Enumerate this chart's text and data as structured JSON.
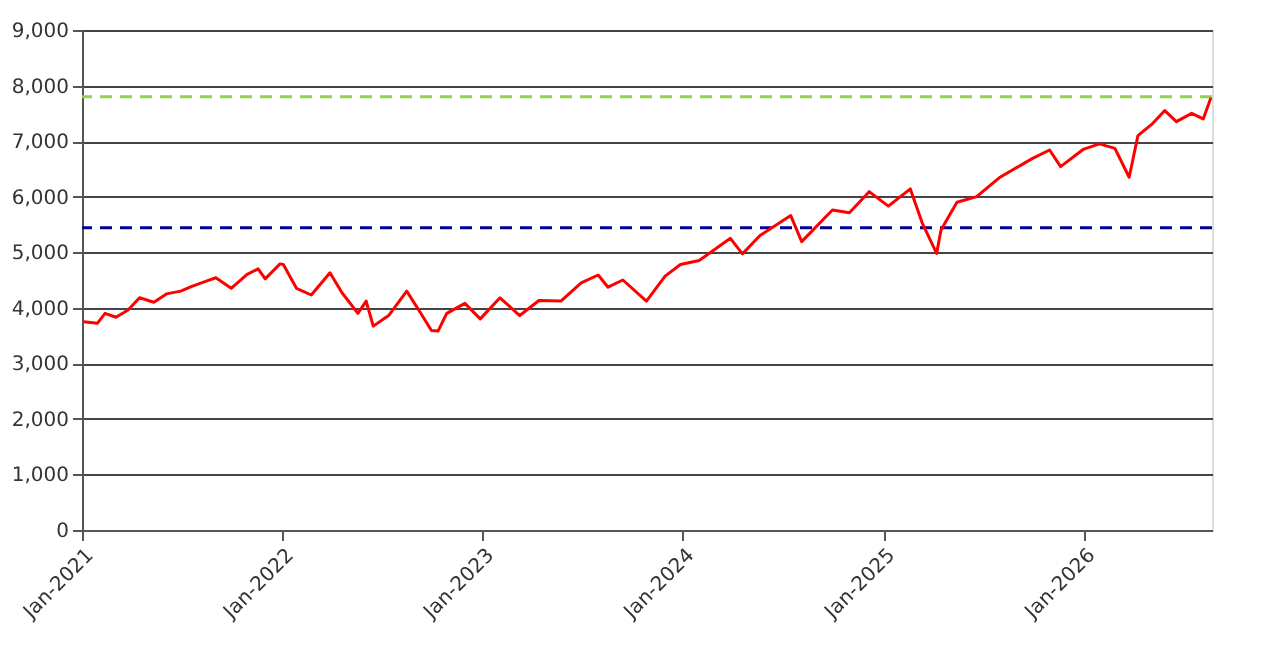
{
  "chart_data": {
    "type": "line",
    "x": [
      "2021-01-04",
      "2021-01-29",
      "2021-02-12",
      "2021-03-04",
      "2021-03-26",
      "2021-04-16",
      "2021-05-12",
      "2021-06-04",
      "2021-06-30",
      "2021-07-19",
      "2021-08-13",
      "2021-09-02",
      "2021-09-30",
      "2021-10-29",
      "2021-11-18",
      "2021-12-01",
      "2021-12-28",
      "2022-01-03",
      "2022-01-27",
      "2022-02-23",
      "2022-03-29",
      "2022-04-20",
      "2022-05-19",
      "2022-06-03",
      "2022-06-16",
      "2022-07-14",
      "2022-08-16",
      "2022-09-12",
      "2022-09-30",
      "2022-10-12",
      "2022-10-28",
      "2022-11-30",
      "2022-12-28",
      "2023-02-02",
      "2023-03-10",
      "2023-04-14",
      "2023-05-24",
      "2023-06-30",
      "2023-07-31",
      "2023-08-18",
      "2023-09-14",
      "2023-10-27",
      "2023-11-30",
      "2023-12-28",
      "2024-01-31",
      "2024-03-28",
      "2024-04-19",
      "2024-05-21",
      "2024-07-16",
      "2024-08-05",
      "2024-09-30",
      "2024-10-31",
      "2024-12-06",
      "2025-01-10",
      "2025-02-19",
      "2025-03-13",
      "2025-04-08",
      "2025-04-16",
      "2025-05-15",
      "2025-06-20",
      "2025-07-31",
      "2025-09-30",
      "2025-10-31",
      "2025-11-20",
      "2025-12-31",
      "2026-01-30",
      "2026-02-27",
      "2026-03-25",
      "2026-04-10",
      "2026-05-05",
      "2026-05-29",
      "2026-06-19",
      "2026-07-17",
      "2026-08-07",
      "2026-08-21"
    ],
    "series": [
      {
        "color": "#ff0000",
        "values": [
          3750,
          3720,
          3900,
          3830,
          3960,
          4180,
          4100,
          4250,
          4300,
          4380,
          4470,
          4540,
          4350,
          4600,
          4700,
          4520,
          4790,
          4780,
          4350,
          4230,
          4630,
          4270,
          3900,
          4120,
          3670,
          3860,
          4300,
          3880,
          3590,
          3580,
          3900,
          4080,
          3800,
          4180,
          3860,
          4130,
          4120,
          4450,
          4590,
          4370,
          4500,
          4120,
          4570,
          4780,
          4850,
          5250,
          4970,
          5300,
          5660,
          5190,
          5760,
          5710,
          6090,
          5830,
          6140,
          5520,
          4980,
          5400,
          5900,
          6000,
          6340,
          6690,
          6840,
          6540,
          6850,
          6950,
          6870,
          6350,
          7100,
          7300,
          7550,
          7350,
          7500,
          7400,
          7780
        ]
      }
    ],
    "ylim": [
      0,
      9000
    ],
    "yticks": [
      0,
      {
        "value": 1000,
        "label": "1,000"
      },
      {
        "value": 2000,
        "label": "2,000"
      },
      {
        "value": 3000,
        "label": "3,000"
      },
      {
        "value": 4000,
        "label": "4,000"
      },
      {
        "value": 5000,
        "label": "5,000"
      },
      {
        "value": 6000,
        "label": "6,000"
      },
      {
        "value": 7000,
        "label": "7,000"
      },
      {
        "value": 8000,
        "label": "8,000"
      },
      {
        "value": 9000,
        "label": "9,000"
      }
    ],
    "xlim": [
      "2021-01-01",
      "2026-08-23"
    ],
    "xticks": [
      {
        "value": "2021-01-01",
        "label": "Jan-2021"
      },
      {
        "value": "2022-01-01",
        "label": "Jan-2022"
      },
      {
        "value": "2023-01-01",
        "label": "Jan-2023"
      },
      {
        "value": "2024-01-01",
        "label": "Jan-2024"
      },
      {
        "value": "2025-01-01",
        "label": "Jan-2025"
      },
      {
        "value": "2026-01-01",
        "label": "Jan-2026"
      }
    ],
    "ref_lines": [
      {
        "axis": "y",
        "value": 7800,
        "color": "#92d050",
        "line_style": "dashed"
      },
      {
        "axis": "y",
        "value": 5440,
        "color": "#000099",
        "line_style": "dashed"
      }
    ],
    "grid": "y",
    "marker": "none",
    "line_style": "solid"
  }
}
